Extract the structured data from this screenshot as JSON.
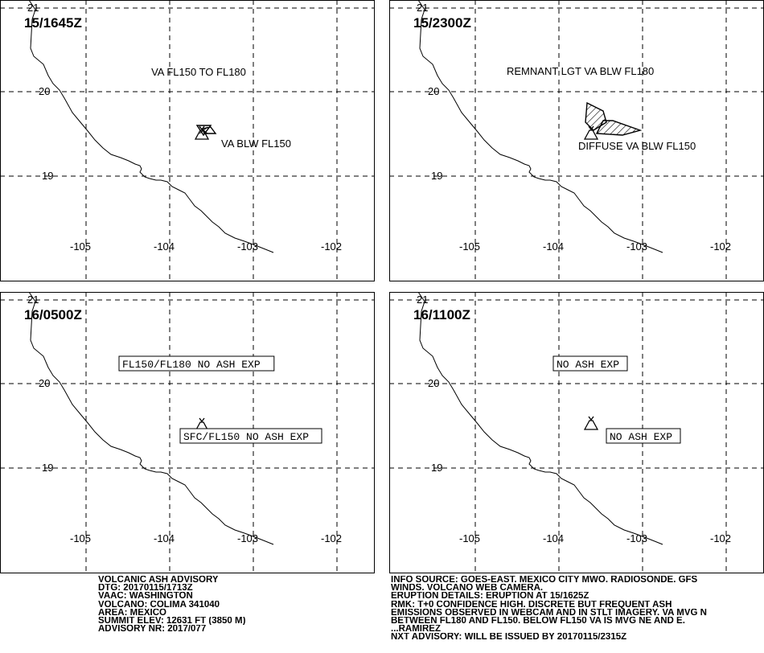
{
  "panels": [
    {
      "time": "15/1645Z",
      "lat_labels": [
        "21",
        "20",
        "19"
      ],
      "lon_labels": [
        "-105",
        "-104",
        "-103",
        "-102"
      ],
      "labels": [
        {
          "text": "VA FL150 TO FL180",
          "boxed": false
        },
        {
          "text": "VA BLW FL150",
          "boxed": false
        }
      ]
    },
    {
      "time": "15/2300Z",
      "lat_labels": [
        "21",
        "20",
        "19"
      ],
      "lon_labels": [
        "-105",
        "-104",
        "-103",
        "-102"
      ],
      "labels": [
        {
          "text": "REMNANT LGT VA BLW FL180",
          "boxed": false
        },
        {
          "text": "DIFFUSE VA BLW FL150",
          "boxed": false
        }
      ]
    },
    {
      "time": "16/0500Z",
      "lat_labels": [
        "21",
        "20",
        "19"
      ],
      "lon_labels": [
        "-105",
        "-104",
        "-103",
        "-102"
      ],
      "labels": [
        {
          "text": "FL150/FL180 NO ASH EXP",
          "boxed": true
        },
        {
          "text": "SFC/FL150 NO ASH EXP",
          "boxed": true
        }
      ]
    },
    {
      "time": "16/1100Z",
      "lat_labels": [
        "21",
        "20",
        "19"
      ],
      "lon_labels": [
        "-105",
        "-104",
        "-103",
        "-102"
      ],
      "labels": [
        {
          "text": "NO ASH EXP",
          "boxed": true
        },
        {
          "text": "NO ASH EXP",
          "boxed": true
        }
      ]
    }
  ],
  "advisory_left": [
    "VOLCANIC ASH ADVISORY",
    "DTG: 20170115/1713Z",
    "VAAC: WASHINGTON",
    "VOLCANO: COLIMA 341040",
    "AREA: MEXICO",
    "SUMMIT ELEV: 12631 FT (3850 M)",
    "ADVISORY NR: 2017/077"
  ],
  "advisory_right": [
    "INFO SOURCE: GOES-EAST. MEXICO CITY MWO. RADIOSONDE. GFS",
    "WINDS. VOLCANO WEB CAMERA.",
    "ERUPTION DETAILS: ERUPTION AT 15/1625Z",
    "RMK: T+0 CONFIDENCE HIGH. DISCRETE BUT FREQUENT ASH",
    "EMISSIONS OBSERVED IN WEBCAM AND IN STLT IMAGERY. VA MVG N",
    "BETWEEN FL180 AND FL150. BELOW FL150 VA IS MVG NE AND E.",
    "...RAMIREZ",
    "NXT ADVISORY: WILL BE ISSUED BY 20170115/2315Z"
  ],
  "ash_polygons": {
    "panel0": "fl150-fl180 cloud and sfc-fl150 cloud near summit",
    "panel1": "hatched remnant cloud and diffuse cloud"
  }
}
